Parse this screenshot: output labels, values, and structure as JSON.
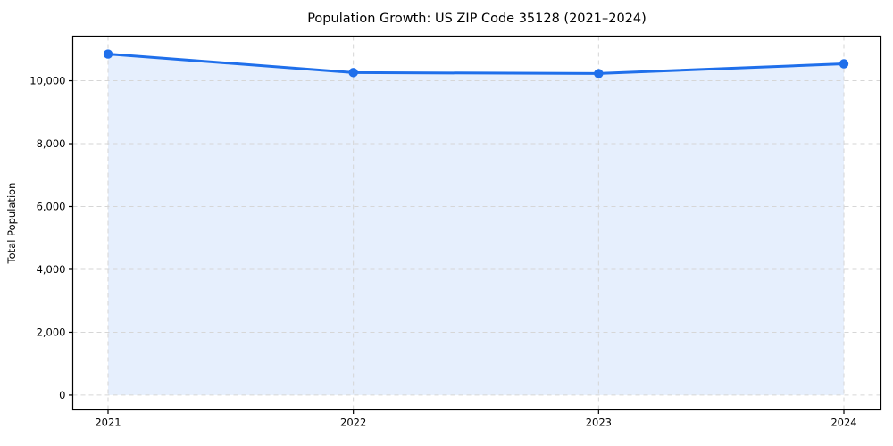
{
  "figure": {
    "background": "#ffffff"
  },
  "chart_data": {
    "type": "line",
    "style": "line-with-markers-and-area-fill",
    "title": "Population Growth: US ZIP Code 35128 (2021–2024)",
    "xlabel": "",
    "ylabel": "Total Population",
    "categories": [
      "2021",
      "2022",
      "2023",
      "2024"
    ],
    "series": [
      {
        "name": "Total Population",
        "values": [
          10850,
          10260,
          10230,
          10540
        ]
      }
    ],
    "yticks": [
      0,
      2000,
      4000,
      6000,
      8000,
      10000
    ],
    "ytick_labels": [
      "0",
      "2,000",
      "4,000",
      "6,000",
      "8,000",
      "10,000"
    ],
    "ylim": [
      -470,
      11420
    ],
    "grid": "dashed-both-axes",
    "legend": "none",
    "colors": {
      "line": "#1f6feb",
      "marker": "#1f6feb",
      "area_fill": "rgba(31,111,235,0.11)",
      "grid": "#d6d6d6",
      "axis": "#000000",
      "text": "#000000",
      "background": "#ffffff"
    }
  }
}
